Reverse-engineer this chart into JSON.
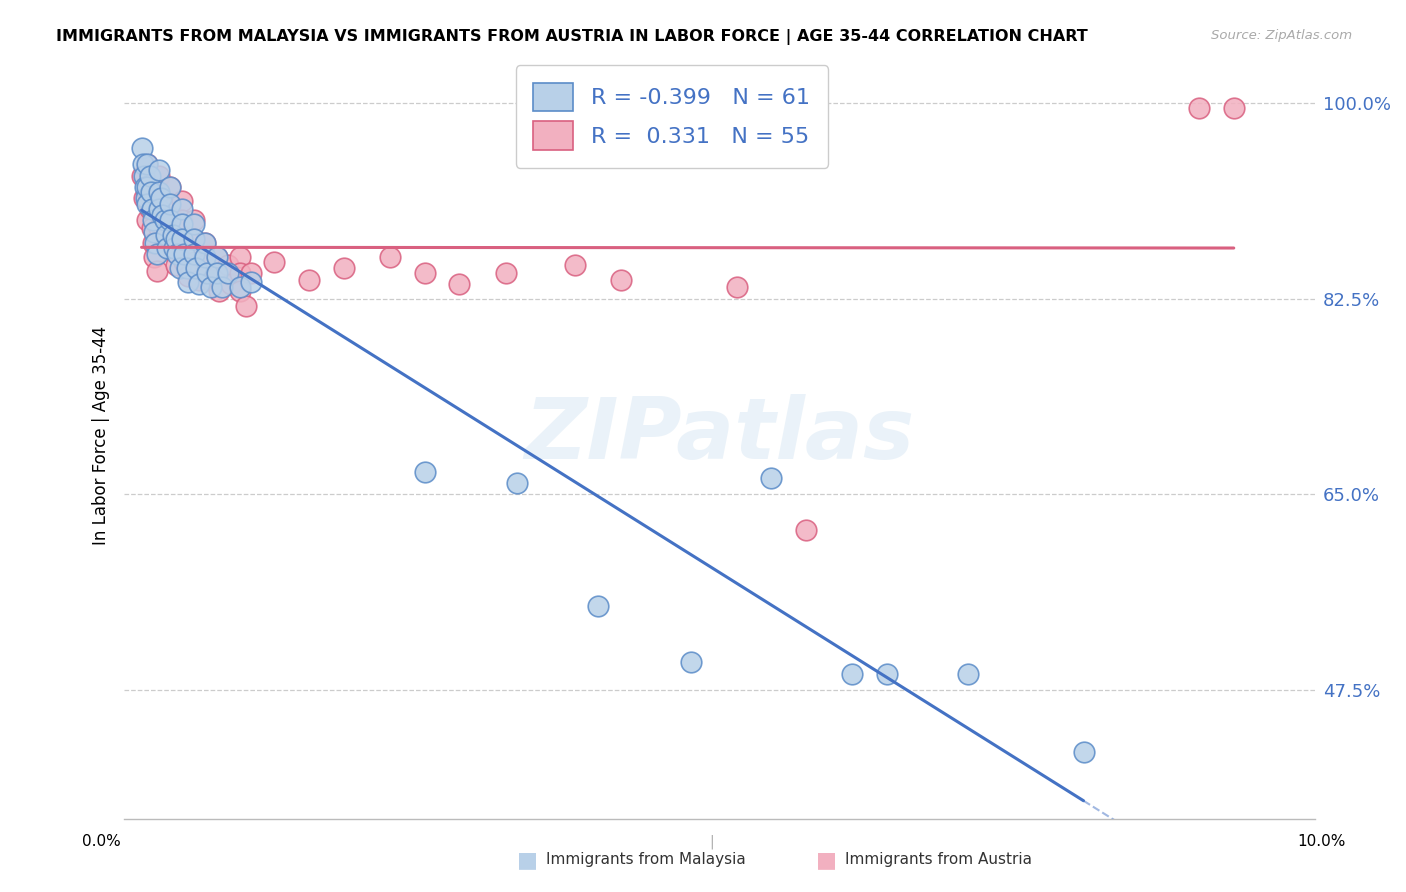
{
  "title": "IMMIGRANTS FROM MALAYSIA VS IMMIGRANTS FROM AUSTRIA IN LABOR FORCE | AGE 35-44 CORRELATION CHART",
  "source": "Source: ZipAtlas.com",
  "ylabel": "In Labor Force | Age 35-44",
  "legend_label1": "Immigrants from Malaysia",
  "legend_label2": "Immigrants from Austria",
  "R_malaysia": -0.399,
  "N_malaysia": 61,
  "R_austria": 0.331,
  "N_austria": 55,
  "color_malaysia_fill": "#b8d0e8",
  "color_austria_fill": "#f2b0c0",
  "color_malaysia_edge": "#5b8cc8",
  "color_austria_edge": "#d96080",
  "color_malaysia_line": "#4472c4",
  "color_austria_line": "#d96080",
  "watermark": "ZIPatlas",
  "ylim_low": 0.36,
  "ylim_high": 1.045,
  "xlim_low": -0.001,
  "xlim_high": 0.102,
  "ytick_vals": [
    0.475,
    0.65,
    0.825,
    1.0
  ],
  "ytick_labels": [
    "47.5%",
    "65.0%",
    "82.5%",
    "100.0%"
  ],
  "malaysia_x": [
    0.0005,
    0.0006,
    0.0007,
    0.0008,
    0.0009,
    0.001,
    0.001,
    0.001,
    0.0012,
    0.0013,
    0.0014,
    0.0015,
    0.0016,
    0.0017,
    0.0018,
    0.002,
    0.002,
    0.002,
    0.0022,
    0.0023,
    0.0025,
    0.0026,
    0.0027,
    0.003,
    0.003,
    0.003,
    0.0032,
    0.0033,
    0.0035,
    0.0036,
    0.0038,
    0.004,
    0.004,
    0.004,
    0.0042,
    0.0044,
    0.0045,
    0.005,
    0.005,
    0.005,
    0.0052,
    0.0055,
    0.006,
    0.006,
    0.0062,
    0.0065,
    0.007,
    0.007,
    0.0075,
    0.008,
    0.009,
    0.01,
    0.025,
    0.033,
    0.04,
    0.048,
    0.055,
    0.062,
    0.065,
    0.072,
    0.082
  ],
  "malaysia_y": [
    0.96,
    0.945,
    0.935,
    0.925,
    0.915,
    0.945,
    0.925,
    0.91,
    0.935,
    0.92,
    0.905,
    0.895,
    0.885,
    0.875,
    0.865,
    0.94,
    0.92,
    0.905,
    0.915,
    0.9,
    0.895,
    0.882,
    0.87,
    0.925,
    0.91,
    0.895,
    0.882,
    0.87,
    0.878,
    0.865,
    0.852,
    0.905,
    0.892,
    0.878,
    0.865,
    0.852,
    0.84,
    0.892,
    0.878,
    0.865,
    0.852,
    0.838,
    0.875,
    0.862,
    0.848,
    0.835,
    0.862,
    0.848,
    0.835,
    0.848,
    0.835,
    0.84,
    0.67,
    0.66,
    0.55,
    0.5,
    0.665,
    0.49,
    0.49,
    0.49,
    0.42
  ],
  "austria_x": [
    0.0005,
    0.0007,
    0.001,
    0.001,
    0.001,
    0.0012,
    0.0014,
    0.0015,
    0.0016,
    0.0018,
    0.002,
    0.002,
    0.002,
    0.0022,
    0.0025,
    0.003,
    0.003,
    0.003,
    0.0032,
    0.0035,
    0.004,
    0.004,
    0.004,
    0.0042,
    0.0045,
    0.005,
    0.005,
    0.005,
    0.0055,
    0.006,
    0.006,
    0.0065,
    0.007,
    0.007,
    0.0072,
    0.008,
    0.0082,
    0.009,
    0.009,
    0.009,
    0.0095,
    0.01,
    0.012,
    0.015,
    0.018,
    0.022,
    0.025,
    0.028,
    0.032,
    0.038,
    0.042,
    0.052,
    0.058,
    0.092,
    0.095
  ],
  "austria_y": [
    0.935,
    0.915,
    0.945,
    0.92,
    0.895,
    0.905,
    0.888,
    0.875,
    0.862,
    0.85,
    0.935,
    0.912,
    0.888,
    0.898,
    0.878,
    0.925,
    0.905,
    0.882,
    0.868,
    0.855,
    0.912,
    0.895,
    0.875,
    0.858,
    0.845,
    0.895,
    0.878,
    0.858,
    0.842,
    0.875,
    0.855,
    0.842,
    0.862,
    0.845,
    0.832,
    0.855,
    0.838,
    0.862,
    0.848,
    0.832,
    0.818,
    0.848,
    0.858,
    0.842,
    0.852,
    0.862,
    0.848,
    0.838,
    0.848,
    0.855,
    0.842,
    0.835,
    0.618,
    0.995,
    0.995
  ]
}
